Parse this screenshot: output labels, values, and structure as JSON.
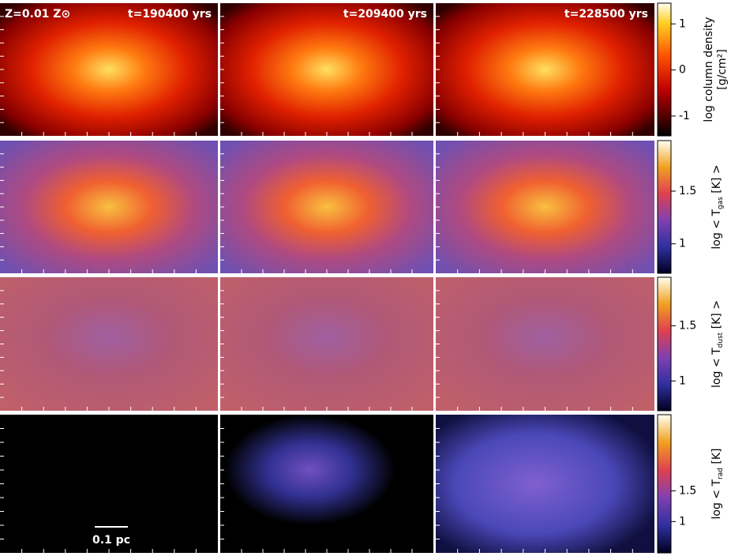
{
  "header": {
    "metallicity": "Z=0.01 Z⊙",
    "times": [
      "t=190400 yrs",
      "t=209400 yrs",
      "t=228500 yrs"
    ]
  },
  "colorbars": [
    {
      "label": "log column density",
      "unit": "[g/cm²]",
      "lim": [
        -1.43,
        1.45
      ],
      "ticks": [
        1,
        0,
        -1
      ]
    },
    {
      "label": "log < T",
      "sub": "gas",
      "unit": " [K] >",
      "lim": [
        0.72,
        1.98
      ],
      "ticks": [
        1.5,
        1
      ]
    },
    {
      "label": "log < T",
      "sub": "dust",
      "unit": " [K] >",
      "lim": [
        0.73,
        1.94
      ],
      "ticks": [
        1.5,
        1
      ]
    },
    {
      "label": "log < T",
      "sub": "rad",
      "unit": " [K]",
      "lim": [
        0.49,
        2.74
      ],
      "ticks": [
        1.5,
        1
      ]
    }
  ],
  "scale_bar": "0.1 pc"
}
